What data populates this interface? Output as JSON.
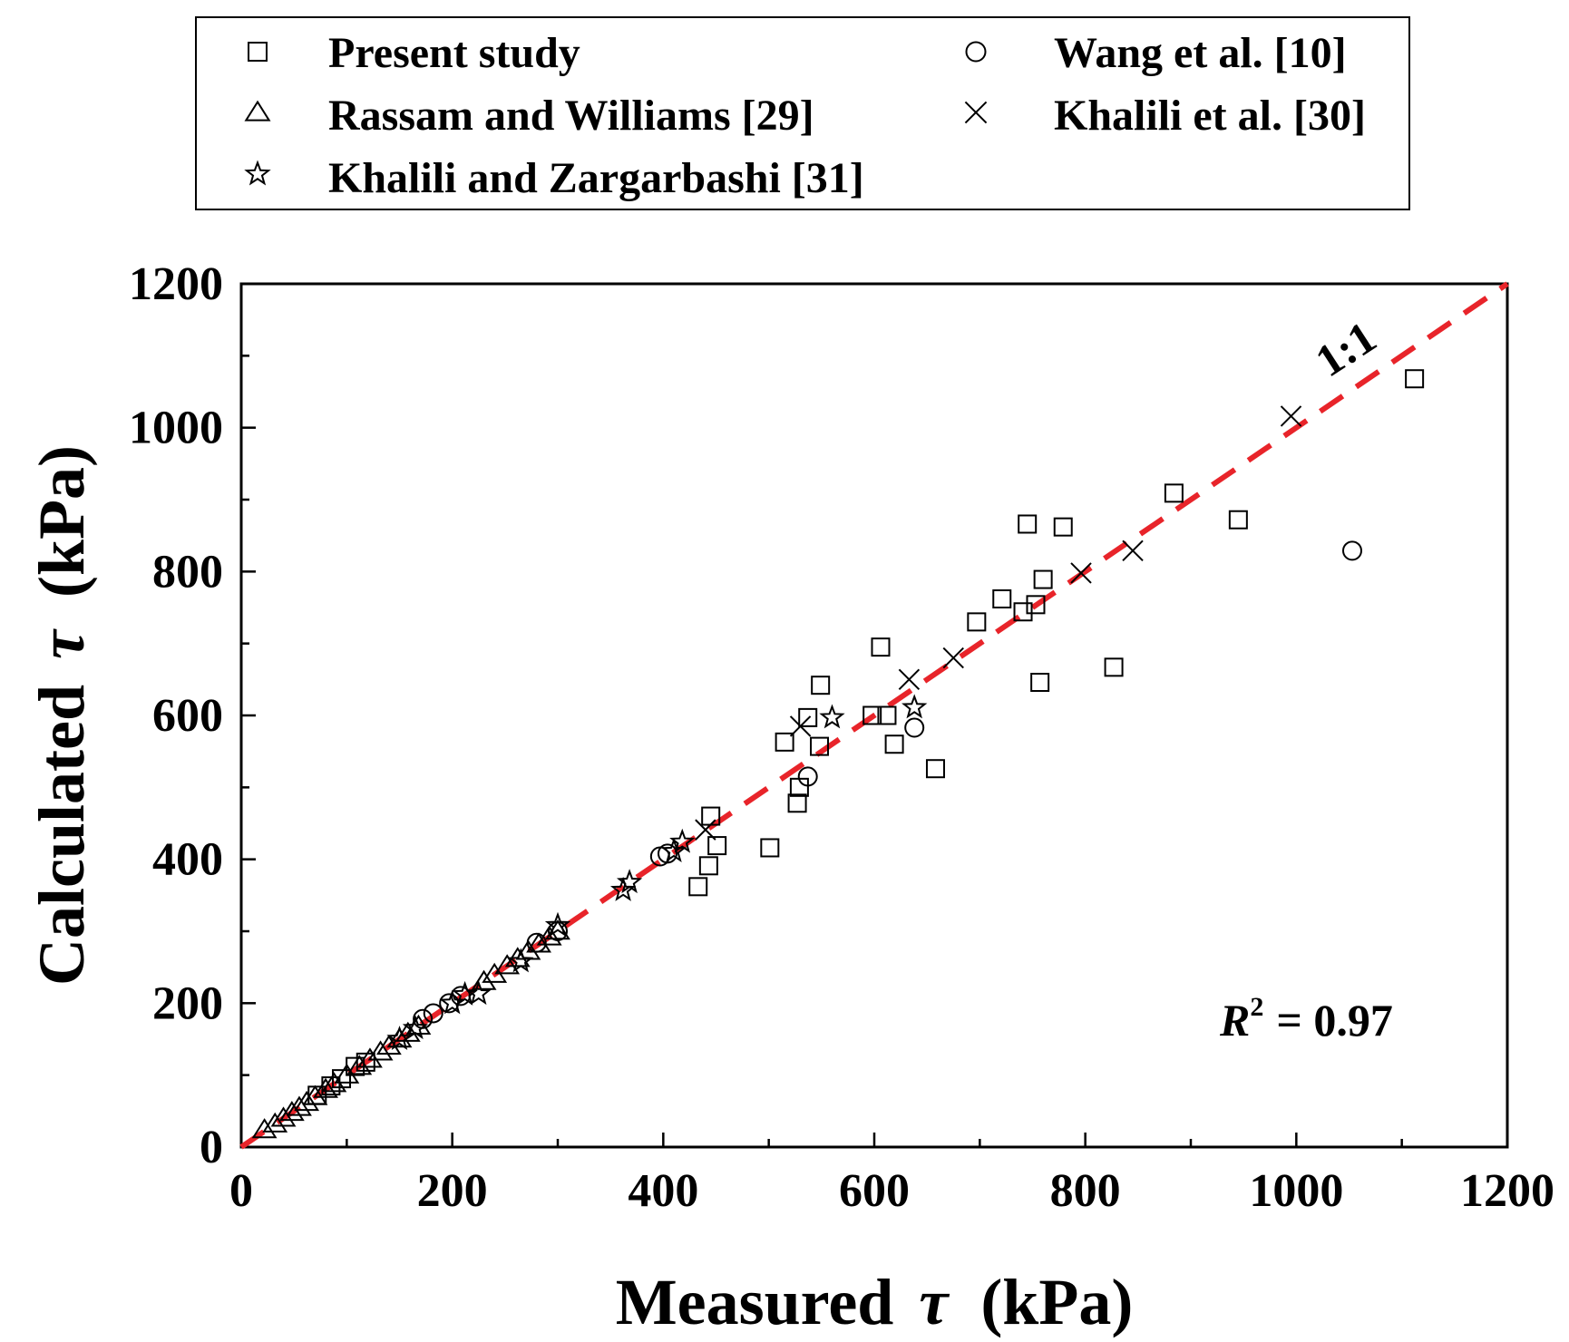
{
  "chart_data": {
    "type": "scatter",
    "title": "",
    "xlabel": "Measured τ (kPa)",
    "ylabel": "Calculated τ (kPa)",
    "xlabel_parts": {
      "prefix": "Measured",
      "symbol": "τ",
      "suffix": "(kPa)"
    },
    "ylabel_parts": {
      "prefix": "Calculated",
      "symbol": "τ",
      "suffix": "(kPa)"
    },
    "xlim": [
      0,
      1200
    ],
    "ylim": [
      0,
      1200
    ],
    "xticks": [
      "0",
      "200",
      "400",
      "600",
      "800",
      "1000",
      "1200"
    ],
    "yticks": [
      "0",
      "200",
      "400",
      "600",
      "800",
      "1000",
      "1200"
    ],
    "grid": false,
    "legend_position": "top",
    "reference_line": {
      "label": "1:1",
      "color": "#e8242a",
      "x": [
        0,
        1200
      ],
      "y": [
        0,
        1200
      ]
    },
    "annotation": {
      "r": "R",
      "sup": "2",
      "text": "= 0.97"
    },
    "series": [
      {
        "name": "Present study",
        "marker": "square",
        "points": [
          [
            72,
            72
          ],
          [
            85,
            85
          ],
          [
            95,
            95
          ],
          [
            108,
            112
          ],
          [
            118,
            118
          ],
          [
            433,
            362
          ],
          [
            443,
            391
          ],
          [
            445,
            460
          ],
          [
            451,
            419
          ],
          [
            501,
            416
          ],
          [
            515,
            563
          ],
          [
            527,
            478
          ],
          [
            529,
            500
          ],
          [
            537,
            597
          ],
          [
            548,
            557
          ],
          [
            549,
            642
          ],
          [
            598,
            600
          ],
          [
            606,
            695
          ],
          [
            612,
            600
          ],
          [
            619,
            560
          ],
          [
            658,
            526
          ],
          [
            697,
            730
          ],
          [
            721,
            762
          ],
          [
            741,
            744
          ],
          [
            745,
            866
          ],
          [
            753,
            754
          ],
          [
            757,
            646
          ],
          [
            760,
            789
          ],
          [
            779,
            862
          ],
          [
            827,
            667
          ],
          [
            884,
            909
          ],
          [
            945,
            872
          ],
          [
            1112,
            1068
          ]
        ]
      },
      {
        "name": "Wang et al. [10]",
        "marker": "circle",
        "points": [
          [
            172,
            178
          ],
          [
            182,
            186
          ],
          [
            197,
            200
          ],
          [
            208,
            210
          ],
          [
            280,
            284
          ],
          [
            300,
            300
          ],
          [
            397,
            404
          ],
          [
            404,
            408
          ],
          [
            537,
            515
          ],
          [
            638,
            583
          ],
          [
            1053,
            829
          ]
        ]
      },
      {
        "name": "Rassam and Williams [29]",
        "marker": "triangle",
        "points": [
          [
            22,
            24
          ],
          [
            32,
            32
          ],
          [
            40,
            40
          ],
          [
            48,
            48
          ],
          [
            55,
            55
          ],
          [
            62,
            62
          ],
          [
            70,
            70
          ],
          [
            80,
            80
          ],
          [
            88,
            88
          ],
          [
            100,
            100
          ],
          [
            112,
            112
          ],
          [
            122,
            122
          ],
          [
            132,
            132
          ],
          [
            140,
            140
          ],
          [
            150,
            150
          ],
          [
            158,
            158
          ],
          [
            168,
            168
          ],
          [
            230,
            230
          ],
          [
            240,
            240
          ],
          [
            252,
            252
          ],
          [
            262,
            262
          ],
          [
            272,
            272
          ],
          [
            282,
            282
          ],
          [
            292,
            292
          ],
          [
            300,
            300
          ]
        ]
      },
      {
        "name": "Khalili et al. [30]",
        "marker": "cross",
        "points": [
          [
            440,
            441
          ],
          [
            530,
            585
          ],
          [
            633,
            650
          ],
          [
            675,
            680
          ],
          [
            796,
            798
          ],
          [
            845,
            829
          ],
          [
            995,
            1016
          ]
        ]
      },
      {
        "name": "Khalili and Zargarbashi [31]",
        "marker": "star",
        "points": [
          [
            150,
            150
          ],
          [
            165,
            165
          ],
          [
            200,
            200
          ],
          [
            212,
            212
          ],
          [
            225,
            213
          ],
          [
            265,
            258
          ],
          [
            300,
            308
          ],
          [
            362,
            357
          ],
          [
            368,
            368
          ],
          [
            410,
            411
          ],
          [
            418,
            424
          ],
          [
            560,
            597
          ],
          [
            638,
            611
          ]
        ]
      }
    ]
  }
}
